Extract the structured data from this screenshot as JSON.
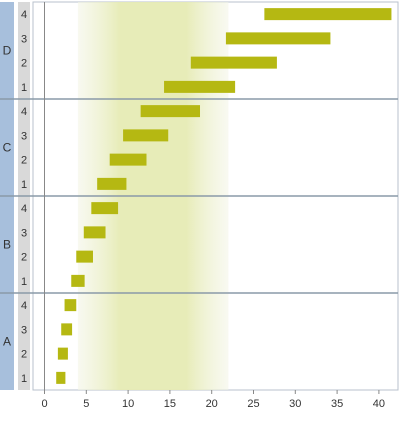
{
  "chart_data": {
    "type": "bar",
    "orientation": "horizontal",
    "bar_style": "floating-range",
    "title": "",
    "xlabel": "",
    "ylabel": "",
    "xlim": [
      -3,
      42
    ],
    "x_ticks": [
      0,
      5,
      10,
      15,
      20,
      25,
      30,
      35,
      40
    ],
    "grid": false,
    "legend": "none",
    "highlight_band": {
      "from": 4,
      "to": 22,
      "peak_from": 9,
      "peak_to": 17
    },
    "colors": {
      "bar": "#b5b812",
      "group_strip": "#a7bfdc",
      "sub_strip": "#d9d9d9",
      "separator": "#8a9aa8",
      "band": "#e6ebb4",
      "axis": "#888888"
    },
    "groups": [
      {
        "name": "D",
        "bars": [
          {
            "label": "4",
            "start": 26.3,
            "end": 41.5
          },
          {
            "label": "3",
            "start": 21.7,
            "end": 34.2
          },
          {
            "label": "2",
            "start": 17.5,
            "end": 27.8
          },
          {
            "label": "1",
            "start": 14.3,
            "end": 22.8
          }
        ]
      },
      {
        "name": "C",
        "bars": [
          {
            "label": "4",
            "start": 11.5,
            "end": 18.6
          },
          {
            "label": "3",
            "start": 9.4,
            "end": 14.8
          },
          {
            "label": "2",
            "start": 7.8,
            "end": 12.2
          },
          {
            "label": "1",
            "start": 6.3,
            "end": 9.8
          }
        ]
      },
      {
        "name": "B",
        "bars": [
          {
            "label": "4",
            "start": 5.6,
            "end": 8.8
          },
          {
            "label": "3",
            "start": 4.7,
            "end": 7.3
          },
          {
            "label": "2",
            "start": 3.8,
            "end": 5.8
          },
          {
            "label": "1",
            "start": 3.2,
            "end": 4.8
          }
        ]
      },
      {
        "name": "A",
        "bars": [
          {
            "label": "4",
            "start": 2.4,
            "end": 3.8
          },
          {
            "label": "3",
            "start": 2.0,
            "end": 3.3
          },
          {
            "label": "2",
            "start": 1.6,
            "end": 2.8
          },
          {
            "label": "1",
            "start": 1.4,
            "end": 2.5
          }
        ]
      }
    ]
  }
}
